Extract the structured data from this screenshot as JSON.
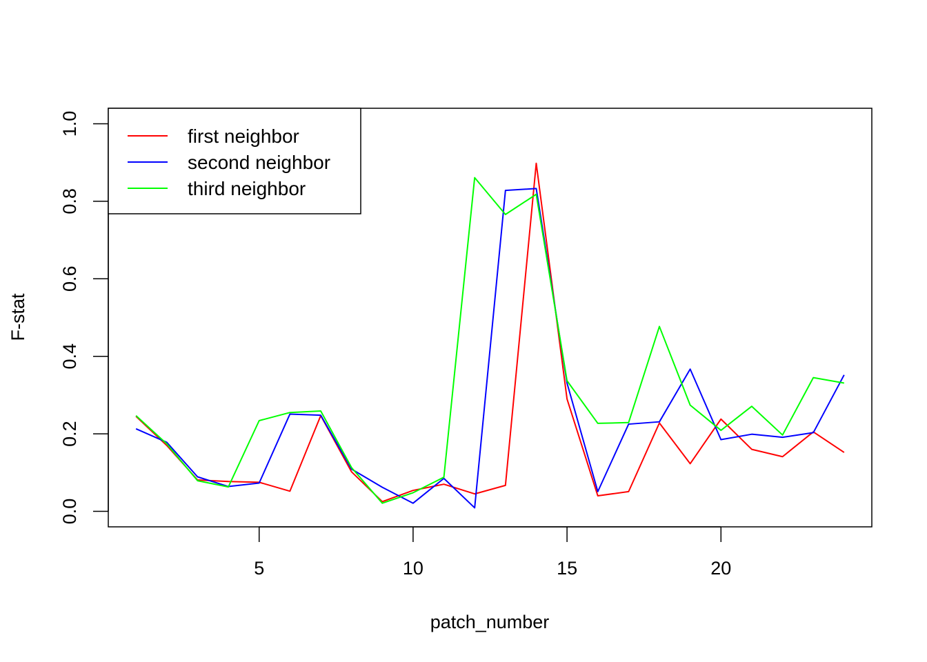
{
  "chart_data": {
    "type": "line",
    "title": "",
    "xlabel": "patch_number",
    "ylabel": "F-stat",
    "xlim": [
      0.1,
      24.9
    ],
    "ylim": [
      -0.04,
      1.04
    ],
    "x_ticks": [
      5,
      10,
      15,
      20
    ],
    "x_tick_labels": [
      "5",
      "10",
      "15",
      "20"
    ],
    "y_ticks": [
      0.0,
      0.2,
      0.4,
      0.6,
      0.8,
      1.0
    ],
    "y_tick_labels": [
      "0.0",
      "0.2",
      "0.4",
      "0.6",
      "0.8",
      "1.0"
    ],
    "grid": false,
    "legend_position": "top-left",
    "x": [
      1,
      2,
      3,
      4,
      5,
      6,
      7,
      8,
      9,
      10,
      11,
      12,
      13,
      14,
      15,
      16,
      17,
      18,
      19,
      20,
      21,
      22,
      23,
      24
    ],
    "series": [
      {
        "name": "first neighbor",
        "color": "#ff0000",
        "values": [
          0.245,
          0.17,
          0.081,
          0.077,
          0.075,
          0.052,
          0.247,
          0.102,
          0.025,
          0.054,
          0.07,
          0.045,
          0.067,
          0.898,
          0.29,
          0.04,
          0.051,
          0.228,
          0.123,
          0.238,
          0.16,
          0.141,
          0.205,
          0.152
        ]
      },
      {
        "name": "second neighbor",
        "color": "#0000ff",
        "values": [
          0.213,
          0.178,
          0.089,
          0.064,
          0.073,
          0.251,
          0.248,
          0.109,
          0.062,
          0.021,
          0.085,
          0.009,
          0.828,
          0.833,
          0.331,
          0.051,
          0.225,
          0.231,
          0.367,
          0.185,
          0.199,
          0.191,
          0.203,
          0.352
        ]
      },
      {
        "name": "third neighbor",
        "color": "#00ff00",
        "values": [
          0.247,
          0.174,
          0.079,
          0.063,
          0.234,
          0.255,
          0.259,
          0.113,
          0.021,
          0.048,
          0.088,
          0.861,
          0.766,
          0.818,
          0.337,
          0.227,
          0.229,
          0.477,
          0.274,
          0.209,
          0.271,
          0.197,
          0.345,
          0.331
        ]
      }
    ]
  }
}
